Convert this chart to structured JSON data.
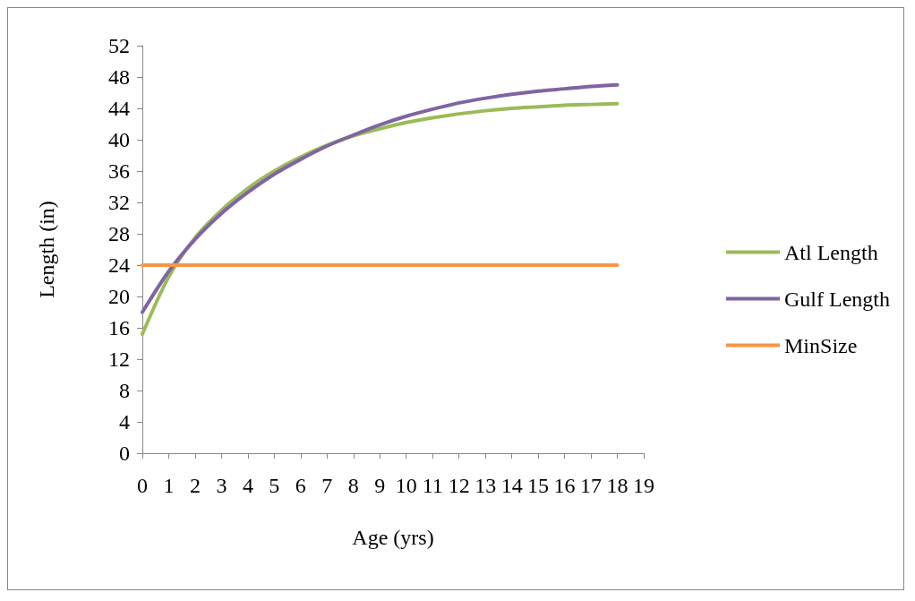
{
  "chart_data": {
    "type": "line",
    "xlabel": "Age (yrs)",
    "ylabel": "Length (in)",
    "x": [
      0,
      1,
      2,
      3,
      4,
      5,
      6,
      7,
      8,
      9,
      10,
      11,
      12,
      13,
      14,
      15,
      16,
      17,
      18
    ],
    "series": [
      {
        "name": "Atl Length",
        "color": "#9bbb59",
        "values": [
          15.2,
          22.5,
          27.5,
          31,
          33.8,
          36,
          37.8,
          39.3,
          40.5,
          41.4,
          42.2,
          42.8,
          43.3,
          43.7,
          44,
          44.2,
          44.4,
          44.5,
          44.6
        ]
      },
      {
        "name": "Gulf Length",
        "color": "#8064a2",
        "values": [
          18,
          23.2,
          27.3,
          30.6,
          33.3,
          35.6,
          37.5,
          39.2,
          40.6,
          41.9,
          43,
          43.9,
          44.7,
          45.3,
          45.8,
          46.2,
          46.5,
          46.8,
          47
        ]
      },
      {
        "name": "MinSize",
        "color": "#f79646",
        "values": [
          24,
          24,
          24,
          24,
          24,
          24,
          24,
          24,
          24,
          24,
          24,
          24,
          24,
          24,
          24,
          24,
          24,
          24,
          24
        ]
      }
    ],
    "xlim": [
      0,
      19
    ],
    "xticks": [
      0,
      1,
      2,
      3,
      4,
      5,
      6,
      7,
      8,
      9,
      10,
      11,
      12,
      13,
      14,
      15,
      16,
      17,
      18,
      19
    ],
    "ylim": [
      0,
      52
    ],
    "yticks": [
      0,
      4,
      8,
      12,
      16,
      20,
      24,
      28,
      32,
      36,
      40,
      44,
      48,
      52
    ],
    "grid": false,
    "legend": "right",
    "marker": "none",
    "line_style": "solid"
  }
}
